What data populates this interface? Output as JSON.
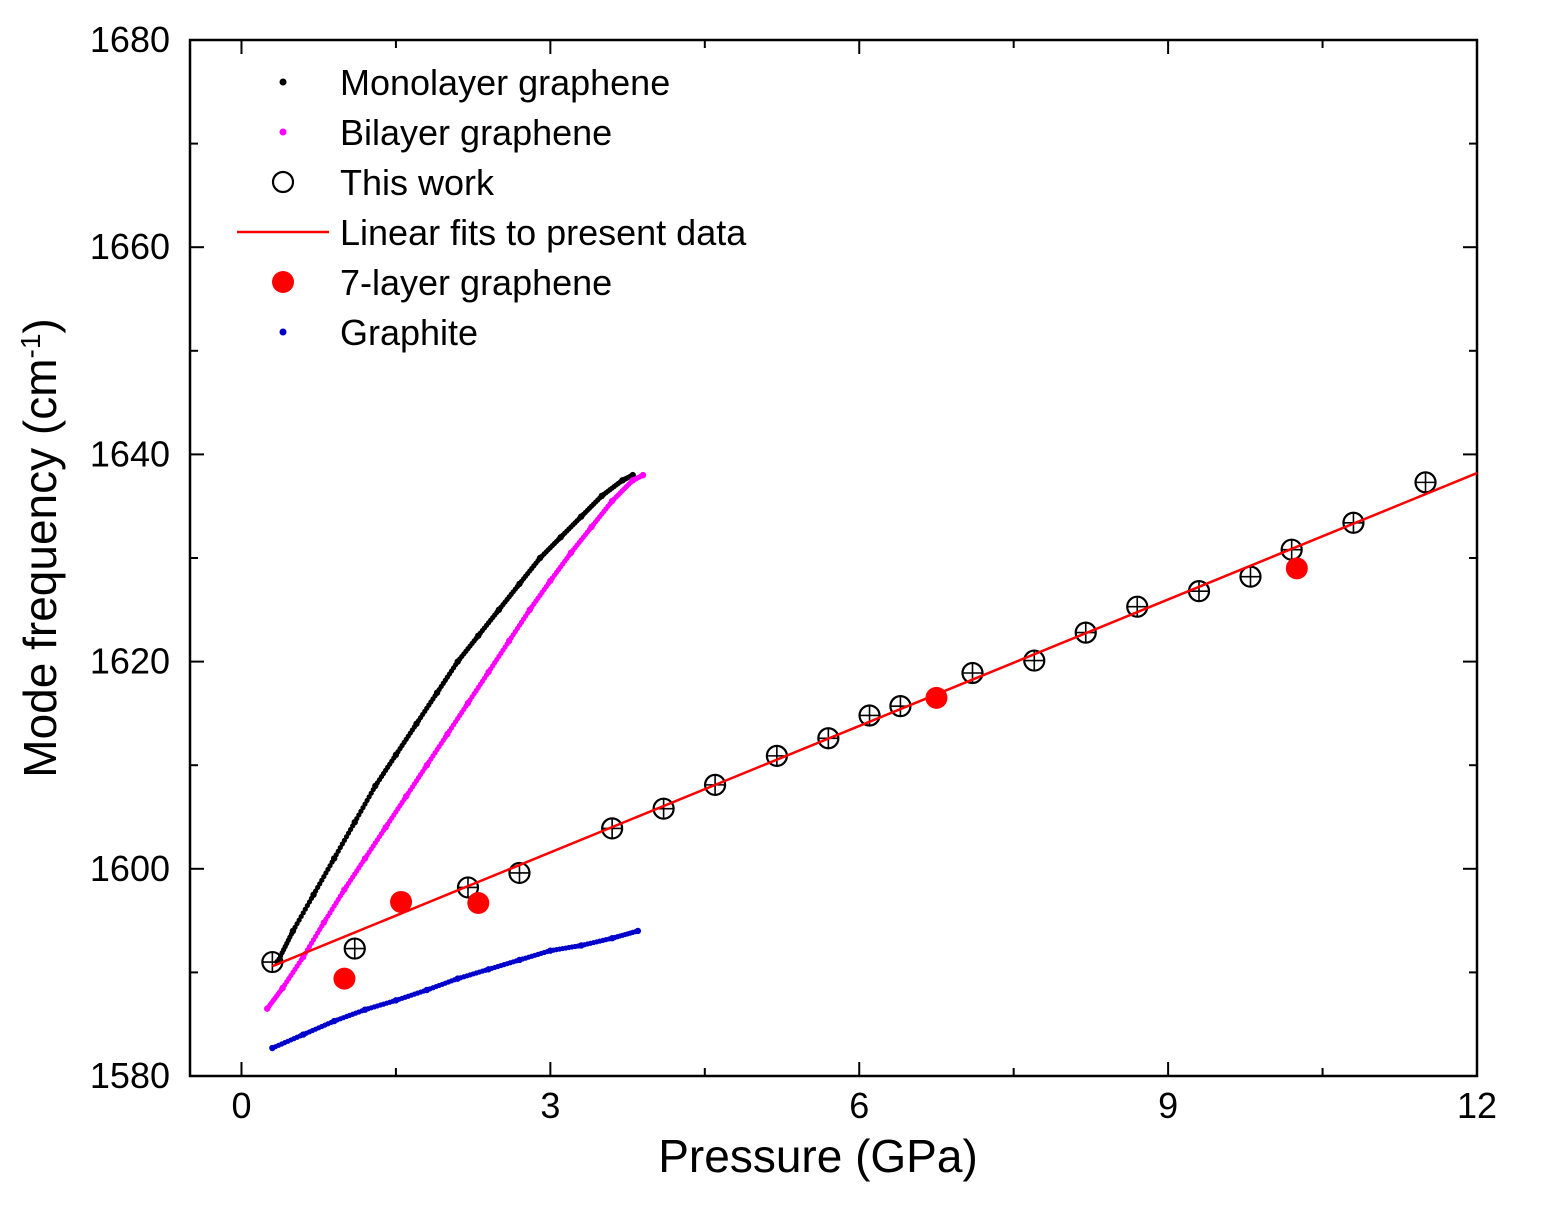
{
  "chart_data": {
    "type": "scatter",
    "title": "",
    "xlabel": "Pressure (GPa)",
    "ylabel": {
      "main": "Mode frequency (cm",
      "superscript": "-1",
      "tail": ")"
    },
    "xlim": [
      -0.5,
      12
    ],
    "ylim": [
      1580,
      1680
    ],
    "xticks": [
      0,
      3,
      6,
      9,
      12
    ],
    "xtick_labels": [
      "0",
      "3",
      "6",
      "9",
      "12"
    ],
    "yticks": [
      1580,
      1600,
      1620,
      1640,
      1660,
      1680
    ],
    "ytick_labels": [
      "1580",
      "1600",
      "1620",
      "1640",
      "1660",
      "1680"
    ],
    "grid": false,
    "legend_position": "top-left",
    "series": [
      {
        "name": "Monolayer graphene",
        "style": "small-dots",
        "color": "#000000",
        "x": [
          0.35,
          0.5,
          0.7,
          0.9,
          1.1,
          1.3,
          1.5,
          1.7,
          1.9,
          2.1,
          2.3,
          2.5,
          2.7,
          2.9,
          3.1,
          3.3,
          3.5,
          3.7,
          3.8
        ],
        "y": [
          1591.0,
          1594.0,
          1597.5,
          1601.0,
          1604.5,
          1608.0,
          1611.0,
          1614.0,
          1617.0,
          1620.0,
          1622.5,
          1625.0,
          1627.5,
          1630.0,
          1632.0,
          1634.0,
          1636.0,
          1637.5,
          1638.0
        ]
      },
      {
        "name": "Bilayer graphene",
        "style": "small-dots",
        "color": "#ff00ff",
        "x": [
          0.25,
          0.4,
          0.6,
          0.8,
          1.0,
          1.2,
          1.4,
          1.6,
          1.8,
          2.0,
          2.2,
          2.4,
          2.6,
          2.8,
          3.0,
          3.2,
          3.4,
          3.6,
          3.8,
          3.9
        ],
        "y": [
          1586.5,
          1588.5,
          1591.5,
          1594.8,
          1598.0,
          1601.0,
          1604.0,
          1607.0,
          1610.0,
          1613.0,
          1616.0,
          1619.0,
          1622.0,
          1625.0,
          1627.8,
          1630.5,
          1633.0,
          1635.5,
          1637.5,
          1638.0
        ]
      },
      {
        "name": "This work",
        "style": "open-circle-crosshair",
        "color": "#000000",
        "x": [
          0.3,
          1.1,
          2.2,
          2.7,
          3.6,
          4.1,
          4.6,
          5.2,
          5.7,
          6.1,
          6.4,
          7.1,
          7.7,
          8.2,
          8.7,
          9.3,
          9.8,
          10.2,
          10.8,
          11.5
        ],
        "y": [
          1591.0,
          1592.3,
          1598.2,
          1599.6,
          1603.9,
          1605.8,
          1608.1,
          1610.9,
          1612.6,
          1614.8,
          1615.7,
          1618.9,
          1620.1,
          1622.8,
          1625.3,
          1626.8,
          1628.2,
          1630.8,
          1633.4,
          1637.3
        ]
      },
      {
        "name": "Linear fits to present data",
        "style": "line",
        "color": "#ff0000",
        "x": [
          0.3,
          12.0
        ],
        "y": [
          1590.6,
          1638.2
        ]
      },
      {
        "name": "7-layer graphene",
        "style": "filled-circle",
        "color": "#ff0000",
        "x": [
          1.0,
          1.55,
          2.3,
          6.75,
          10.25
        ],
        "y": [
          1589.4,
          1596.8,
          1596.7,
          1616.5,
          1629.0
        ]
      },
      {
        "name": "Graphite",
        "style": "small-dots",
        "color": "#0000cc",
        "x": [
          0.3,
          0.6,
          0.9,
          1.2,
          1.5,
          1.8,
          2.1,
          2.4,
          2.7,
          3.0,
          3.3,
          3.6,
          3.85
        ],
        "y": [
          1582.7,
          1584.0,
          1585.3,
          1586.4,
          1587.3,
          1588.3,
          1589.4,
          1590.3,
          1591.2,
          1592.1,
          1592.6,
          1593.3,
          1594.0
        ]
      }
    ]
  }
}
